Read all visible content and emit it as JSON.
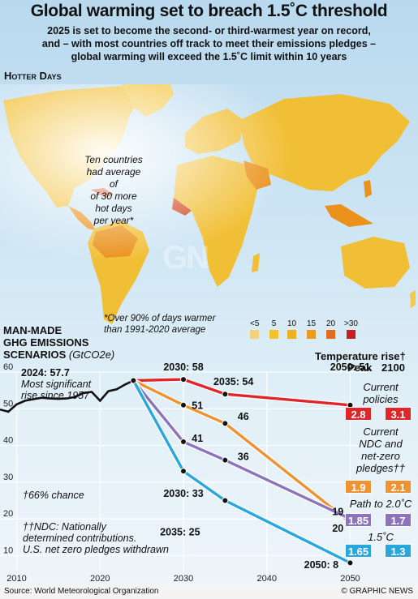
{
  "title": "Global warming set to breach 1.5˚C threshold",
  "subtitle_lines": [
    "2025 is set to become the second- or third-warmest year on record,",
    "and – with most countries off track to meet their emissions pledges –",
    "global warming will exceed the 1.5˚C limit within 10 years"
  ],
  "map": {
    "section_title": "Hotter Days",
    "note_lines": [
      "Ten countries",
      "had average of",
      "of 30 more",
      "hot days",
      "per year*"
    ],
    "footnote_lines": [
      "*Over 90% of days warmer",
      "than 1991-2020 average"
    ],
    "legend": [
      {
        "label": "<5",
        "color": "#f2d27a"
      },
      {
        "label": "5",
        "color": "#f2c230"
      },
      {
        "label": "10",
        "color": "#efb021"
      },
      {
        "label": "15",
        "color": "#ea9a1c"
      },
      {
        "label": "20",
        "color": "#e26c1f"
      },
      {
        "label": ">30",
        "color": "#c81e1e"
      }
    ],
    "colors": {
      "land": "#f1bf36",
      "hot": "#ea921c",
      "hottest": "#d2421a",
      "ocean": "#cfe6f4"
    }
  },
  "ghg": {
    "title_lines": [
      "MAN-MADE",
      "GHG EMISSIONS",
      "SCENARIOS"
    ],
    "unit": "(GtCO2e)",
    "temp_head": "Temperature rise†",
    "peak_label": "Peak",
    "end_label": "2100",
    "footnote1": "†66% chance",
    "footnote2_lines": [
      "††NDC: Nationally",
      "determined contributions.",
      "U.S. net zero pledges withdrawn"
    ],
    "annotation_2024_value": "2024: 57.7",
    "annotation_2024_lines": [
      "Most significant",
      "rise since 1957"
    ]
  },
  "chart_data": {
    "type": "line",
    "xlabel": "",
    "ylabel": "",
    "xlim": [
      2008,
      2052
    ],
    "ylim": [
      5,
      62
    ],
    "x_ticks": [
      2010,
      2020,
      2030,
      2040,
      2050
    ],
    "y_ticks": [
      10,
      20,
      30,
      40,
      50,
      60
    ],
    "history": {
      "color": "#111111",
      "x": [
        2008,
        2009,
        2010,
        2011,
        2012,
        2013,
        2014,
        2015,
        2016,
        2017,
        2018,
        2019,
        2020,
        2021,
        2022,
        2023,
        2024
      ],
      "values": [
        49.8,
        49.2,
        51.2,
        52.2,
        52.6,
        53.0,
        52.8,
        52.7,
        52.8,
        53.2,
        54.3,
        54.6,
        52.2,
        54.8,
        55.3,
        56.6,
        57.7
      ]
    },
    "series": [
      {
        "color": "#e1262a",
        "x": [
          2024,
          2030,
          2035,
          2050
        ],
        "values": [
          57.7,
          58,
          54,
          51
        ],
        "peak": "2.8",
        "end": "3.1",
        "label_lines": [
          "Current",
          "policies"
        ]
      },
      {
        "color": "#ef9232",
        "x": [
          2024,
          2030,
          2035,
          2050
        ],
        "values": [
          57.7,
          51,
          46,
          19
        ],
        "peak": "1.9",
        "end": "2.1",
        "label_lines": [
          "Current",
          "NDC and",
          "net-zero",
          "pledges††"
        ]
      },
      {
        "color": "#8c74bd",
        "x": [
          2024,
          2030,
          2035,
          2050
        ],
        "values": [
          57.7,
          41,
          36,
          20
        ],
        "peak": "1.85",
        "end": "1.7",
        "label_lines": [
          "Path to 2.0˚C"
        ]
      },
      {
        "color": "#28a7dd",
        "x": [
          2024,
          2030,
          2035,
          2050
        ],
        "values": [
          57.7,
          33,
          25,
          8
        ],
        "peak": "1.65",
        "end": "1.3",
        "label_lines": [
          "1.5˚C"
        ]
      }
    ],
    "annotations": [
      {
        "text": "2030: 58"
      },
      {
        "text": "2035: 54"
      },
      {
        "text": "2050: 51"
      },
      {
        "text": "51"
      },
      {
        "text": "46"
      },
      {
        "text": "41"
      },
      {
        "text": "36"
      },
      {
        "text": "19"
      },
      {
        "text": "20"
      },
      {
        "text": "2030: 33"
      },
      {
        "text": "2035: 25"
      },
      {
        "text": "2050: 8"
      }
    ]
  },
  "footer": {
    "source": "Source: World Meteorological Organization",
    "credit": "© GRAPHIC NEWS"
  },
  "watermark": "GN"
}
